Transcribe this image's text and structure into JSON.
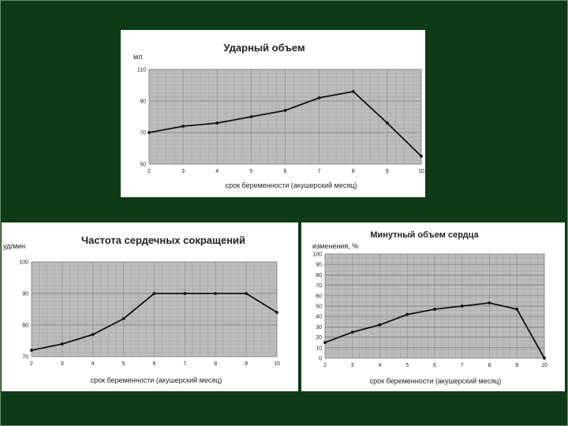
{
  "colors": {
    "background": "#0f3a16",
    "panel": "#ffffff",
    "plot_area": "#bdbdbd",
    "grid": "#9a9a9a",
    "line": "#111111"
  },
  "chart_data": [
    {
      "type": "line",
      "title": "Ударный объем",
      "ylabel": "мл",
      "xlabel": "срок беременности (акушерский месяц)",
      "x": [
        2,
        3,
        4,
        5,
        6,
        7,
        8,
        9,
        10
      ],
      "values": [
        70,
        74,
        76,
        80,
        84,
        92,
        96,
        76,
        55
      ],
      "ylim": [
        50,
        110
      ],
      "yticks": [
        50,
        70,
        90,
        110
      ],
      "xticks": [
        2,
        3,
        4,
        5,
        6,
        7,
        8,
        9,
        10
      ],
      "grid": true
    },
    {
      "type": "line",
      "title": "Частота сердечных сокращений",
      "ylabel": "уд/мин",
      "xlabel": "срок беременности (акушерский месяц)",
      "x": [
        2,
        3,
        4,
        5,
        6,
        7,
        8,
        9,
        10
      ],
      "values": [
        72,
        74,
        77,
        82,
        90,
        90,
        90,
        90,
        84
      ],
      "ylim": [
        70,
        100
      ],
      "yticks": [
        70,
        80,
        90,
        100
      ],
      "xticks": [
        2,
        3,
        4,
        5,
        6,
        7,
        8,
        9,
        10
      ],
      "grid": true
    },
    {
      "type": "line",
      "title": "Минутный объем сердца",
      "ylabel": "изменения, %",
      "xlabel": "срок беременности (акушерский месяц)",
      "x": [
        2,
        3,
        4,
        5,
        6,
        7,
        8,
        9,
        10
      ],
      "values": [
        15,
        25,
        32,
        42,
        47,
        50,
        53,
        47,
        0
      ],
      "ylim": [
        0,
        100
      ],
      "yticks": [
        0,
        10,
        20,
        30,
        40,
        50,
        60,
        70,
        80,
        90,
        100
      ],
      "xticks": [
        2,
        3,
        4,
        5,
        6,
        7,
        8,
        9,
        10
      ],
      "grid": true
    }
  ]
}
